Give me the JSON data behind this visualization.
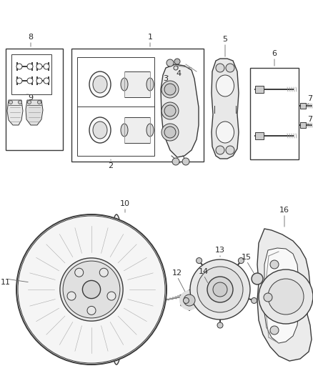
{
  "bg_color": "#ffffff",
  "lc": "#3a3a3a",
  "figsize": [
    4.38,
    5.33
  ],
  "dpi": 100,
  "xlim": [
    0,
    438
  ],
  "ylim": [
    0,
    533
  ]
}
